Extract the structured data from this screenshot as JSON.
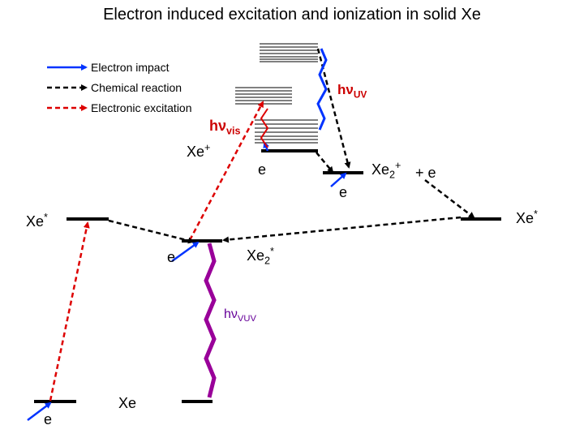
{
  "title": "Electron induced excitation and ionization in solid Xe",
  "legend": {
    "electron_impact": "Electron impact",
    "chemical_reaction": "Chemical reaction",
    "electronic_excitation": "Electronic excitation"
  },
  "labels": {
    "xe_ground": "Xe",
    "xe_star_left": "Xe",
    "xe_star_left_sup": "*",
    "xe_plus": "Xe",
    "xe_plus_sup": "+",
    "xe2_plus": "Xe",
    "xe2_plus_sub": "2",
    "xe2_plus_sup": "+",
    "plus_e": "+ e",
    "xe_star_right": "Xe",
    "xe_star_right_sup": "*",
    "xe2_star": "Xe",
    "xe2_star_sub": "2",
    "xe2_star_sup": "*"
  },
  "electron_labels": {
    "e_bottom": "e",
    "e_mid_left": "e",
    "e_ionization": "e",
    "e_xe2plus": "e"
  },
  "photons": {
    "hv_uv": "hν",
    "hv_uv_sub": "UV",
    "hv_vis": "hν",
    "hv_vis_sub": "vis",
    "hv_vuv": "hν",
    "hv_vuv_sub": "VUV"
  },
  "colors": {
    "electron_impact": "#0033ff",
    "chemical_reaction": "#000000",
    "electronic_excitation": "#dd0000",
    "vuv_emission": "#990099"
  }
}
